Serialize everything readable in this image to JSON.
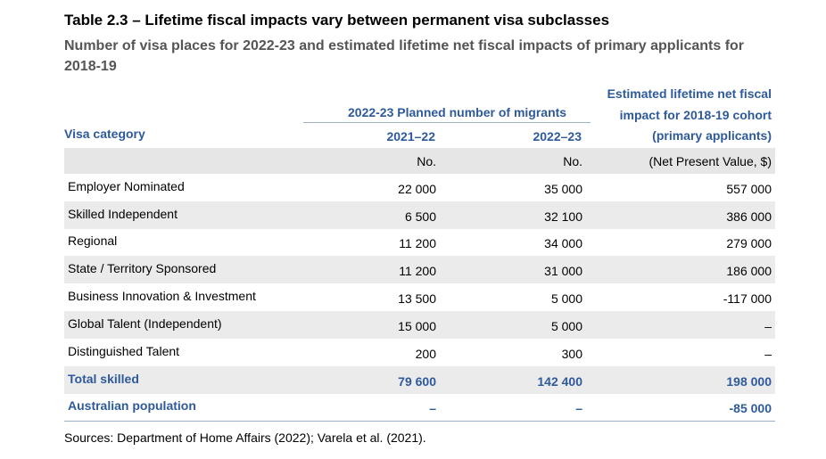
{
  "title": "Table 2.3 – Lifetime fiscal impacts vary between permanent visa subclasses",
  "subtitle": "Number of visa places for 2022-23 and estimated lifetime net fiscal impacts of primary applicants for 2018-19",
  "header": {
    "group_label": "2022-23 Planned number of migrants",
    "fiscal_label_line1": "Estimated lifetime net fiscal",
    "fiscal_label_line2": "impact for 2018-19 cohort",
    "fiscal_label_line3": "(primary applicants)",
    "visa_category": "Visa category",
    "col1": "2021–22",
    "col2": "2022–23"
  },
  "units": {
    "col1": "No.",
    "col2": "No.",
    "col3": "(Net Present Value, $)"
  },
  "rows": [
    {
      "label": "Employer Nominated",
      "c1": "22 000",
      "c2": "35 000",
      "c3": "557 000"
    },
    {
      "label": "Skilled Independent",
      "c1": "6 500",
      "c2": "32 100",
      "c3": "386 000"
    },
    {
      "label": "Regional",
      "c1": "11 200",
      "c2": "34 000",
      "c3": "279 000"
    },
    {
      "label": "State / Territory Sponsored",
      "c1": "11 200",
      "c2": "31 000",
      "c3": "186 000"
    },
    {
      "label": "Business Innovation & Investment",
      "c1": "13 500",
      "c2": "5 000",
      "c3": "-117 000"
    },
    {
      "label": "Global Talent (Independent)",
      "c1": "15 000",
      "c2": "5 000",
      "c3": "–"
    },
    {
      "label": "Distinguished Talent",
      "c1": "200",
      "c2": "300",
      "c3": "–"
    }
  ],
  "totals": [
    {
      "label": "Total skilled",
      "c1": "79 600",
      "c2": "142 400",
      "c3": "198 000"
    },
    {
      "label": "Australian population",
      "c1": "–",
      "c2": "–",
      "c3": "-85 000"
    }
  ],
  "source": "Sources: Department of Home Affairs (2022); Varela et al. (2021).",
  "colors": {
    "header_blue": "#2E5A9C",
    "subtitle_grey": "#555555",
    "row_shade": "#EBEBEB"
  }
}
